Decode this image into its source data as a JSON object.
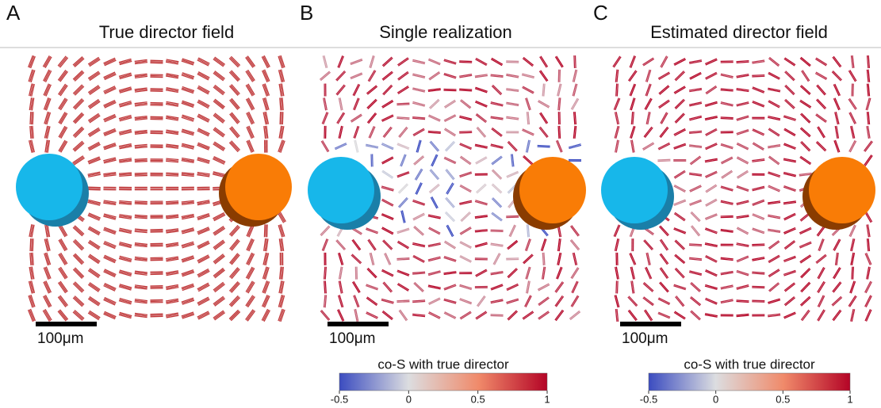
{
  "panels": [
    {
      "letter": "A",
      "title": "True director field",
      "scale_bar": "100μm"
    },
    {
      "letter": "B",
      "title": "Single realization",
      "scale_bar": "100μm",
      "colorbar": {
        "label": "co-S with true director",
        "ticks": [
          -0.5,
          0,
          0.5,
          1
        ]
      }
    },
    {
      "letter": "C",
      "title": "Estimated director field",
      "scale_bar": "100μm",
      "colorbar": {
        "label": "co-S with true director",
        "ticks": [
          -0.5,
          0,
          0.5,
          1
        ]
      }
    }
  ]
}
